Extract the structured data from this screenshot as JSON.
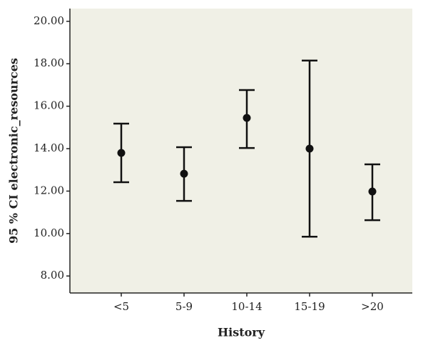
{
  "chart_data": {
    "type": "errorbar",
    "x_label": "History",
    "y_label": "95 % CI electronic_resources",
    "categories": [
      "<5",
      "5-9",
      "10-14",
      "15-19",
      ">20"
    ],
    "series": [
      {
        "color": "#111111",
        "values": [
          13.8,
          12.82,
          15.45,
          14.0,
          11.98
        ],
        "ci_lower": [
          12.42,
          11.54,
          14.03,
          9.85,
          10.63
        ],
        "ci_upper": [
          15.18,
          14.07,
          16.76,
          18.15,
          13.26
        ]
      }
    ],
    "ylim": [
      7.2,
      20.6
    ],
    "yticks": [
      {
        "value": 8,
        "label": "8.00"
      },
      {
        "value": 10,
        "label": "10.00"
      },
      {
        "value": 12,
        "label": "12.00"
      },
      {
        "value": 14,
        "label": "14.00"
      },
      {
        "value": 16,
        "label": "16.00"
      },
      {
        "value": 18,
        "label": "18.00"
      },
      {
        "value": 20,
        "label": "20.00"
      }
    ],
    "background": "#f0f0e6"
  }
}
